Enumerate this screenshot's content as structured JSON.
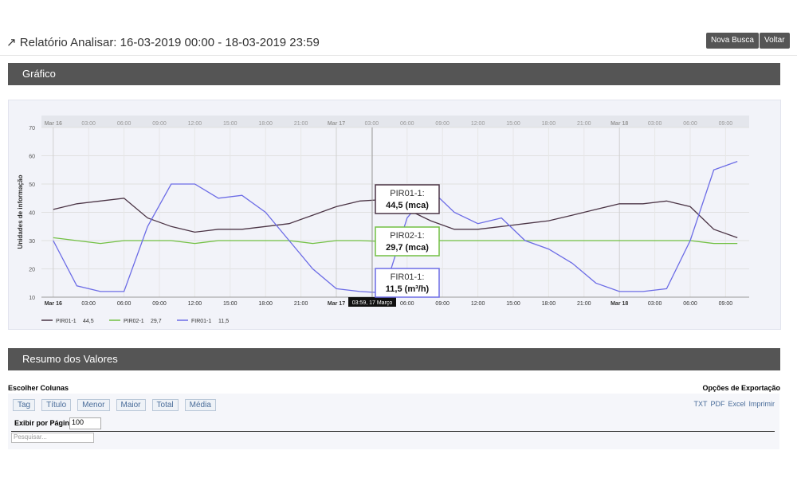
{
  "header": {
    "title": "Relatório Analisar: 16-03-2019 00:00 - 18-03-2019 23:59",
    "buttons": [
      "Nova Busca",
      "Voltar"
    ]
  },
  "panels": {
    "chart": "Gráfico",
    "summary": "Resumo dos Valores"
  },
  "summary": {
    "choose_columns": "Escolher Colunas",
    "export_options": "Opções de Exportação",
    "columns": [
      "Tag",
      "Título",
      "Menor",
      "Maior",
      "Total",
      "Média"
    ],
    "export": [
      "TXT",
      "PDF",
      "Excel",
      "Imprimir"
    ],
    "per_page_label": "Exibir por Página:",
    "per_page": "100",
    "search_placeholder": "Pesquisar..."
  },
  "chart_data": {
    "type": "line",
    "y_label": "Unidades de informação",
    "x": [
      0,
      2,
      4,
      6,
      8,
      10,
      12,
      14,
      16,
      18,
      20,
      22,
      24,
      26,
      28,
      30,
      32,
      34,
      36,
      38,
      40,
      42,
      44,
      46,
      48,
      50,
      52,
      54,
      56,
      58
    ],
    "xlim": [
      -1,
      59
    ],
    "xticks": [
      {
        "value": 0,
        "label": "Mar 16"
      },
      {
        "value": 3,
        "label": "03:00"
      },
      {
        "value": 6,
        "label": "06:00"
      },
      {
        "value": 9,
        "label": "09:00"
      },
      {
        "value": 12,
        "label": "12:00"
      },
      {
        "value": 15,
        "label": "15:00"
      },
      {
        "value": 18,
        "label": "18:00"
      },
      {
        "value": 21,
        "label": "21:00"
      },
      {
        "value": 24,
        "label": "Mar 17"
      },
      {
        "value": 27,
        "label": "03:00"
      },
      {
        "value": 30,
        "label": "06:00"
      },
      {
        "value": 33,
        "label": "09:00"
      },
      {
        "value": 36,
        "label": "12:00"
      },
      {
        "value": 39,
        "label": "15:00"
      },
      {
        "value": 42,
        "label": "18:00"
      },
      {
        "value": 45,
        "label": "21:00"
      },
      {
        "value": 48,
        "label": "Mar 18"
      },
      {
        "value": 51,
        "label": "03:00"
      },
      {
        "value": 54,
        "label": "06:00"
      },
      {
        "value": 57,
        "label": "09:00"
      }
    ],
    "ylim": [
      10,
      70
    ],
    "yticks": [
      10,
      20,
      30,
      40,
      50,
      60,
      70
    ],
    "grid": true,
    "series": [
      {
        "name": "PIR01-1",
        "legend_value": "44,5",
        "color": "#4b3445",
        "values": [
          41,
          43,
          44,
          45,
          38,
          35,
          33,
          34,
          34,
          35,
          36,
          39,
          42,
          44,
          44.5,
          41,
          37,
          34,
          34,
          35,
          36,
          37,
          39,
          41,
          43,
          43,
          44,
          42,
          34,
          31
        ]
      },
      {
        "name": "PIR02-1",
        "legend_value": "29,7",
        "color": "#72c043",
        "values": [
          31,
          30,
          29,
          30,
          30,
          30,
          29,
          30,
          30,
          30,
          30,
          29,
          30,
          30,
          29.7,
          30,
          30,
          30,
          30,
          30,
          30,
          30,
          30,
          30,
          30,
          30,
          30,
          30,
          29,
          29
        ]
      },
      {
        "name": "FIR01-1",
        "legend_value": "11,5",
        "color": "#6c6ce6",
        "values": [
          30,
          14,
          12,
          12,
          35,
          50,
          50,
          45,
          46,
          40,
          30,
          20,
          13,
          12,
          11.5,
          38,
          48,
          40,
          36,
          38,
          30,
          27,
          22,
          15,
          12,
          12,
          13,
          30,
          55,
          58
        ]
      }
    ],
    "tooltips": [
      {
        "title": "PIR01-1:",
        "value": "44,5 (mca)"
      },
      {
        "title": "PIR02-1:",
        "value": "29,7 (mca)"
      },
      {
        "title": "FIR01-1:",
        "value": "11,5 (m³/h)"
      }
    ],
    "crosshair_label": "03:59, 17 Março"
  }
}
